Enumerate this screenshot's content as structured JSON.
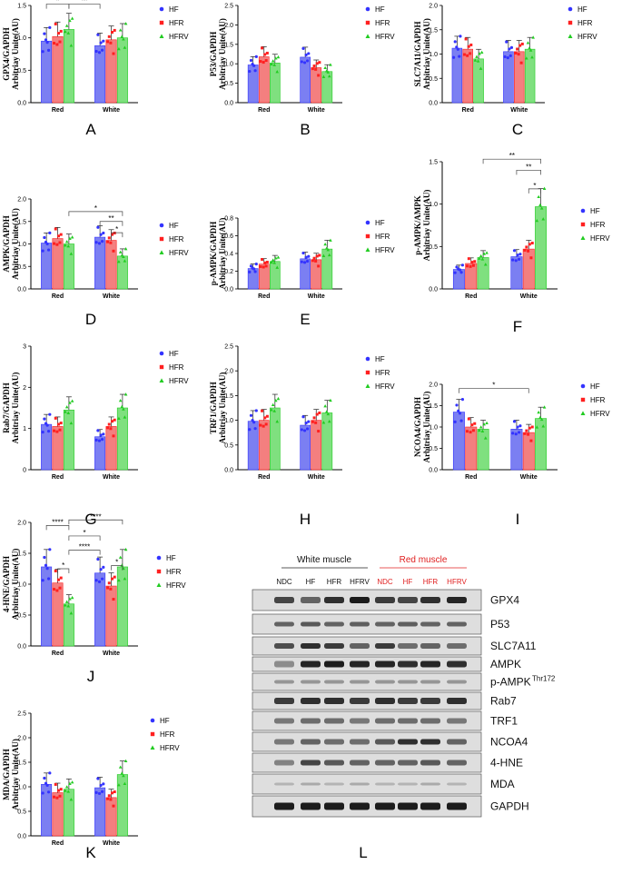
{
  "colors": {
    "HF": "#3333ff",
    "HFR": "#ff2020",
    "HFRV": "#22cc22",
    "HF_bar": "#7b7ff2",
    "HFR_bar": "#f47f7f",
    "HFRV_bar": "#7fe07f"
  },
  "legend": [
    "HF",
    "HFR",
    "HFRV"
  ],
  "groups": [
    "Red",
    "White"
  ],
  "panels": [
    {
      "letter": "A",
      "ylabel1": "GPX4/GAPDH",
      "ylabel2": "Arbitriay Unite(AU)",
      "ymax": 1.5,
      "ticks": [
        "0.0",
        "0.5",
        "1.0",
        "1.5"
      ]
    },
    {
      "letter": "B",
      "ylabel1": "P53/GAPDH",
      "ylabel2": "Arbitriay Unite(AU)",
      "ymax": 2.5,
      "ticks": [
        "0.0",
        "0.5",
        "1.0",
        "1.5",
        "2.0",
        "2.5"
      ]
    },
    {
      "letter": "C",
      "ylabel1": "SLC7A11/GAPDH",
      "ylabel2": "Arbitriay Unite(AU)",
      "ymax": 2.0,
      "ticks": [
        "0.0",
        "0.5",
        "1.0",
        "1.5",
        "2.0"
      ]
    },
    {
      "letter": "D",
      "ylabel1": "AMPK/GAPDH",
      "ylabel2": "Arbitriay Unite(AU)",
      "ymax": 2.0,
      "ticks": [
        "0.0",
        "0.5",
        "1.0",
        "1.5",
        "2.0"
      ]
    },
    {
      "letter": "E",
      "ylabel1": "p-AMPK/GAPDH",
      "ylabel2": "Arbitriay Unite(AU)",
      "ymax": 0.8,
      "ticks": [
        "0.0",
        "0.2",
        "0.4",
        "0.6",
        "0.8"
      ]
    },
    {
      "letter": "F",
      "ylabel1": "p-AMPK/AMPK",
      "ylabel2": "Arbitriay Unite(AU)",
      "ymax": 1.5,
      "ticks": [
        "0.0",
        "0.5",
        "1.0",
        "1.5"
      ]
    },
    {
      "letter": "G",
      "ylabel1": "Rab7/GAPDH",
      "ylabel2": "Arbitriay Unite(AU)",
      "ymax": 3,
      "ticks": [
        "0",
        "1",
        "2",
        "3"
      ]
    },
    {
      "letter": "H",
      "ylabel1": "TRF1/GAPDH",
      "ylabel2": "Arbitriay Unite(AU)",
      "ymax": 2.5,
      "ticks": [
        "0.0",
        "0.5",
        "1.0",
        "1.5",
        "2.0",
        "2.5"
      ]
    },
    {
      "letter": "I",
      "ylabel1": "NCOA4/GAPDH",
      "ylabel2": "Arbitriay Unite(AU)",
      "ymax": 2.0,
      "ticks": [
        "0.0",
        "0.5",
        "1.0",
        "1.5",
        "2.0"
      ]
    },
    {
      "letter": "J",
      "ylabel1": "4-HNE/GAPDH",
      "ylabel2": "Arbitriay Unite(AU)",
      "ymax": 2.0,
      "ticks": [
        "0.0",
        "0.5",
        "1.0",
        "1.5",
        "2.0"
      ]
    },
    {
      "letter": "K",
      "ylabel1": "MDA/GAPDH",
      "ylabel2": "Arbitriay Unite(AU)",
      "ymax": 2.5,
      "ticks": [
        "0.0",
        "0.5",
        "1.0",
        "1.5",
        "2.0",
        "2.5"
      ]
    }
  ],
  "significance": {
    "A": [
      "*",
      "**"
    ],
    "D": [
      "*",
      "**",
      "*"
    ],
    "F": [
      "**",
      "**",
      "*"
    ],
    "I": [
      "*"
    ],
    "J": [
      "****",
      "****",
      "*",
      "****",
      "*",
      "*"
    ]
  },
  "chart_data": [
    {
      "type": "bar",
      "panel": "A",
      "categories": [
        "Red",
        "White"
      ],
      "series": [
        {
          "name": "HF",
          "values": [
            0.95,
            0.88
          ]
        },
        {
          "name": "HFR",
          "values": [
            1.02,
            0.97
          ]
        },
        {
          "name": "HFRV",
          "values": [
            1.13,
            1.0
          ]
        }
      ],
      "ylabel": "GPX4/GAPDH Arbitriay Unite(AU)",
      "ylim": [
        0,
        1.5
      ]
    },
    {
      "type": "bar",
      "panel": "B",
      "categories": [
        "Red",
        "White"
      ],
      "series": [
        {
          "name": "HF",
          "values": [
            0.97,
            1.17
          ]
        },
        {
          "name": "HFR",
          "values": [
            1.18,
            0.9
          ]
        },
        {
          "name": "HFRV",
          "values": [
            1.02,
            0.8
          ]
        }
      ],
      "ylabel": "P53/GAPDH Arbitriay Unite(AU)",
      "ylim": [
        0,
        2.5
      ]
    },
    {
      "type": "bar",
      "panel": "C",
      "categories": [
        "Red",
        "White"
      ],
      "series": [
        {
          "name": "HF",
          "values": [
            1.12,
            1.05
          ]
        },
        {
          "name": "HFR",
          "values": [
            1.1,
            1.05
          ]
        },
        {
          "name": "HFRV",
          "values": [
            0.9,
            1.1
          ]
        }
      ],
      "ylabel": "SLC7A11/GAPDH Arbitriay Unite(AU)",
      "ylim": [
        0,
        2.0
      ]
    },
    {
      "type": "bar",
      "panel": "D",
      "categories": [
        "Red",
        "White"
      ],
      "series": [
        {
          "name": "HF",
          "values": [
            1.02,
            1.15
          ]
        },
        {
          "name": "HFR",
          "values": [
            1.12,
            1.08
          ]
        },
        {
          "name": "HFRV",
          "values": [
            1.0,
            0.73
          ]
        }
      ],
      "ylabel": "AMPK/GAPDH Arbitriay Unite(AU)",
      "ylim": [
        0,
        2.0
      ]
    },
    {
      "type": "bar",
      "panel": "E",
      "categories": [
        "Red",
        "White"
      ],
      "series": [
        {
          "name": "HF",
          "values": [
            0.23,
            0.34
          ]
        },
        {
          "name": "HFR",
          "values": [
            0.28,
            0.33
          ]
        },
        {
          "name": "HFRV",
          "values": [
            0.31,
            0.45
          ]
        }
      ],
      "ylabel": "p-AMPK/GAPDH Arbitriay Unite(AU)",
      "ylim": [
        0,
        0.8
      ]
    },
    {
      "type": "bar",
      "panel": "F",
      "categories": [
        "Red",
        "White"
      ],
      "series": [
        {
          "name": "HF",
          "values": [
            0.23,
            0.38
          ]
        },
        {
          "name": "HFR",
          "values": [
            0.3,
            0.47
          ]
        },
        {
          "name": "HFRV",
          "values": [
            0.37,
            0.97
          ]
        }
      ],
      "ylabel": "p-AMPK/AMPK Arbitriay Unite(AU)",
      "ylim": [
        0,
        1.5
      ]
    },
    {
      "type": "bar",
      "panel": "G",
      "categories": [
        "Red",
        "White"
      ],
      "series": [
        {
          "name": "HF",
          "values": [
            1.1,
            0.8
          ]
        },
        {
          "name": "HFR",
          "values": [
            1.05,
            1.05
          ]
        },
        {
          "name": "HFRV",
          "values": [
            1.45,
            1.5
          ]
        }
      ],
      "ylabel": "Rab7/GAPDH Arbitriay Unite(AU)",
      "ylim": [
        0,
        3
      ]
    },
    {
      "type": "bar",
      "panel": "H",
      "categories": [
        "Red",
        "White"
      ],
      "series": [
        {
          "name": "HF",
          "values": [
            0.98,
            0.9
          ]
        },
        {
          "name": "HFR",
          "values": [
            1.0,
            1.0
          ]
        },
        {
          "name": "HFRV",
          "values": [
            1.25,
            1.15
          ]
        }
      ],
      "ylabel": "TRF1/GAPDH Arbitriay Unite(AU)",
      "ylim": [
        0,
        2.5
      ]
    },
    {
      "type": "bar",
      "panel": "I",
      "categories": [
        "Red",
        "White"
      ],
      "series": [
        {
          "name": "HF",
          "values": [
            1.35,
            0.95
          ]
        },
        {
          "name": "HFR",
          "values": [
            1.0,
            0.87
          ]
        },
        {
          "name": "HFRV",
          "values": [
            0.95,
            1.2
          ]
        }
      ],
      "ylabel": "NCOA4/GAPDH Arbitriay Unite(AU)",
      "ylim": [
        0,
        2.0
      ]
    },
    {
      "type": "bar",
      "panel": "J",
      "categories": [
        "Red",
        "White"
      ],
      "series": [
        {
          "name": "HF",
          "values": [
            1.28,
            1.18
          ]
        },
        {
          "name": "HFR",
          "values": [
            1.02,
            0.97
          ]
        },
        {
          "name": "HFRV",
          "values": [
            0.68,
            1.28
          ]
        }
      ],
      "ylabel": "4-HNE/GAPDH Arbitriay Unite(AU)",
      "ylim": [
        0,
        2.0
      ]
    },
    {
      "type": "bar",
      "panel": "K",
      "categories": [
        "Red",
        "White"
      ],
      "series": [
        {
          "name": "HF",
          "values": [
            1.05,
            0.98
          ]
        },
        {
          "name": "HFR",
          "values": [
            0.88,
            0.78
          ]
        },
        {
          "name": "HFRV",
          "values": [
            0.95,
            1.25
          ]
        }
      ],
      "ylabel": "MDA/GAPDH Arbitriay Unite(AU)",
      "ylim": [
        0,
        2.5
      ]
    }
  ],
  "blot": {
    "letter": "L",
    "white_header": "White muscle",
    "red_header": "Red muscle",
    "columns": [
      "NDC",
      "HF",
      "HFR",
      "HFRV",
      "NDC",
      "HF",
      "HFR",
      "HFRV"
    ],
    "rows": [
      "GPX4",
      "P53",
      "SLC7A11",
      "AMPK",
      "p-AMPK",
      "Rab7",
      "TRF1",
      "NCOA4",
      "4-HNE",
      "MDA",
      "GAPDH"
    ],
    "pampk_sup": "Thr172"
  }
}
